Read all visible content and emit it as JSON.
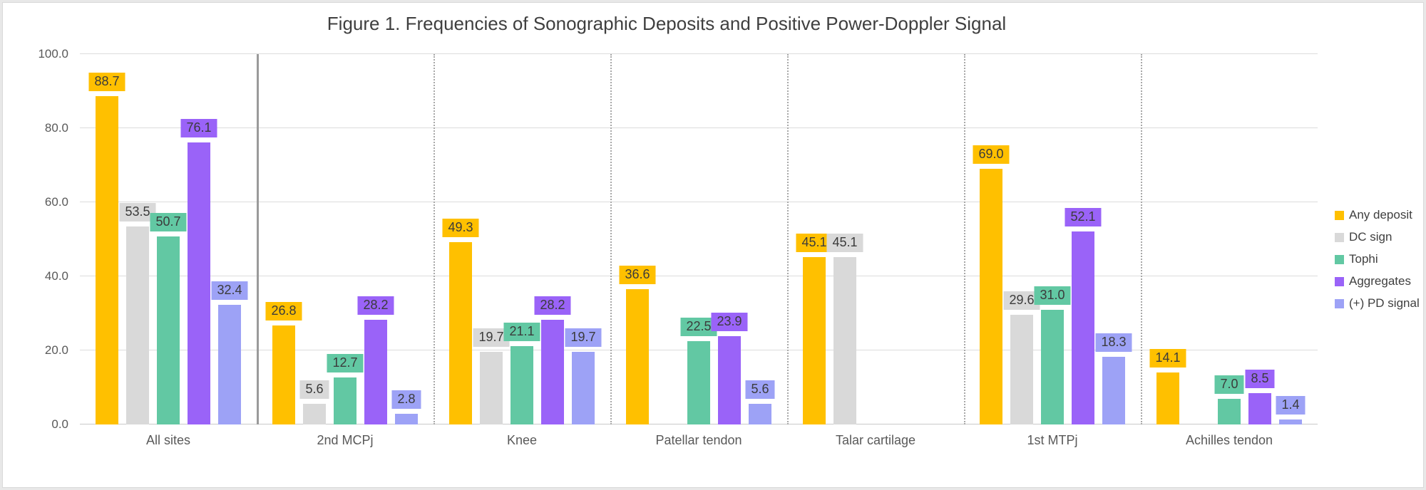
{
  "chart_data": {
    "type": "bar",
    "title": "Figure 1. Frequencies of Sonographic Deposits and Positive Power-Doppler Signal",
    "categories": [
      "All sites",
      "2nd MCPj",
      "Knee",
      "Patellar tendon",
      "Talar cartilage",
      "1st MTPj",
      "Achilles tendon"
    ],
    "series": [
      {
        "name": "Any deposit",
        "color": "#FFC000",
        "values": [
          88.7,
          26.8,
          49.3,
          36.6,
          45.1,
          69.0,
          14.1
        ]
      },
      {
        "name": "DC sign",
        "color": "#D9D9D9",
        "values": [
          53.5,
          5.6,
          19.7,
          null,
          45.1,
          29.6,
          null
        ]
      },
      {
        "name": "Tophi",
        "color": "#62C8A3",
        "values": [
          50.7,
          12.7,
          21.1,
          22.5,
          null,
          31.0,
          7.0
        ]
      },
      {
        "name": "Aggregates",
        "color": "#9A63F8",
        "values": [
          76.1,
          28.2,
          28.2,
          23.9,
          null,
          52.1,
          8.5
        ]
      },
      {
        "name": "(+) PD signal",
        "color": "#9DA2F6",
        "values": [
          32.4,
          2.8,
          19.7,
          5.6,
          null,
          18.3,
          1.4
        ]
      }
    ],
    "y_axis": {
      "min": 0,
      "max": 100,
      "ticks": [
        {
          "v": 0,
          "label": "0.0"
        },
        {
          "v": 20,
          "label": "20.0"
        },
        {
          "v": 40,
          "label": "40.0"
        },
        {
          "v": 60,
          "label": "60.0"
        },
        {
          "v": 80,
          "label": "80.0"
        },
        {
          "v": 100,
          "label": "100.0"
        }
      ]
    },
    "grid": true,
    "legend_position": "right",
    "value_label_decimals": 1,
    "separators": {
      "solid_after_group": 1,
      "dotted_between_other_groups": true
    },
    "colors": {
      "grid": "#dcdcdc",
      "axis_line": "#c9c9c9",
      "solid_separator": "#9a9a9a",
      "text": "#3f3f3f",
      "axis_text": "#595959"
    }
  }
}
